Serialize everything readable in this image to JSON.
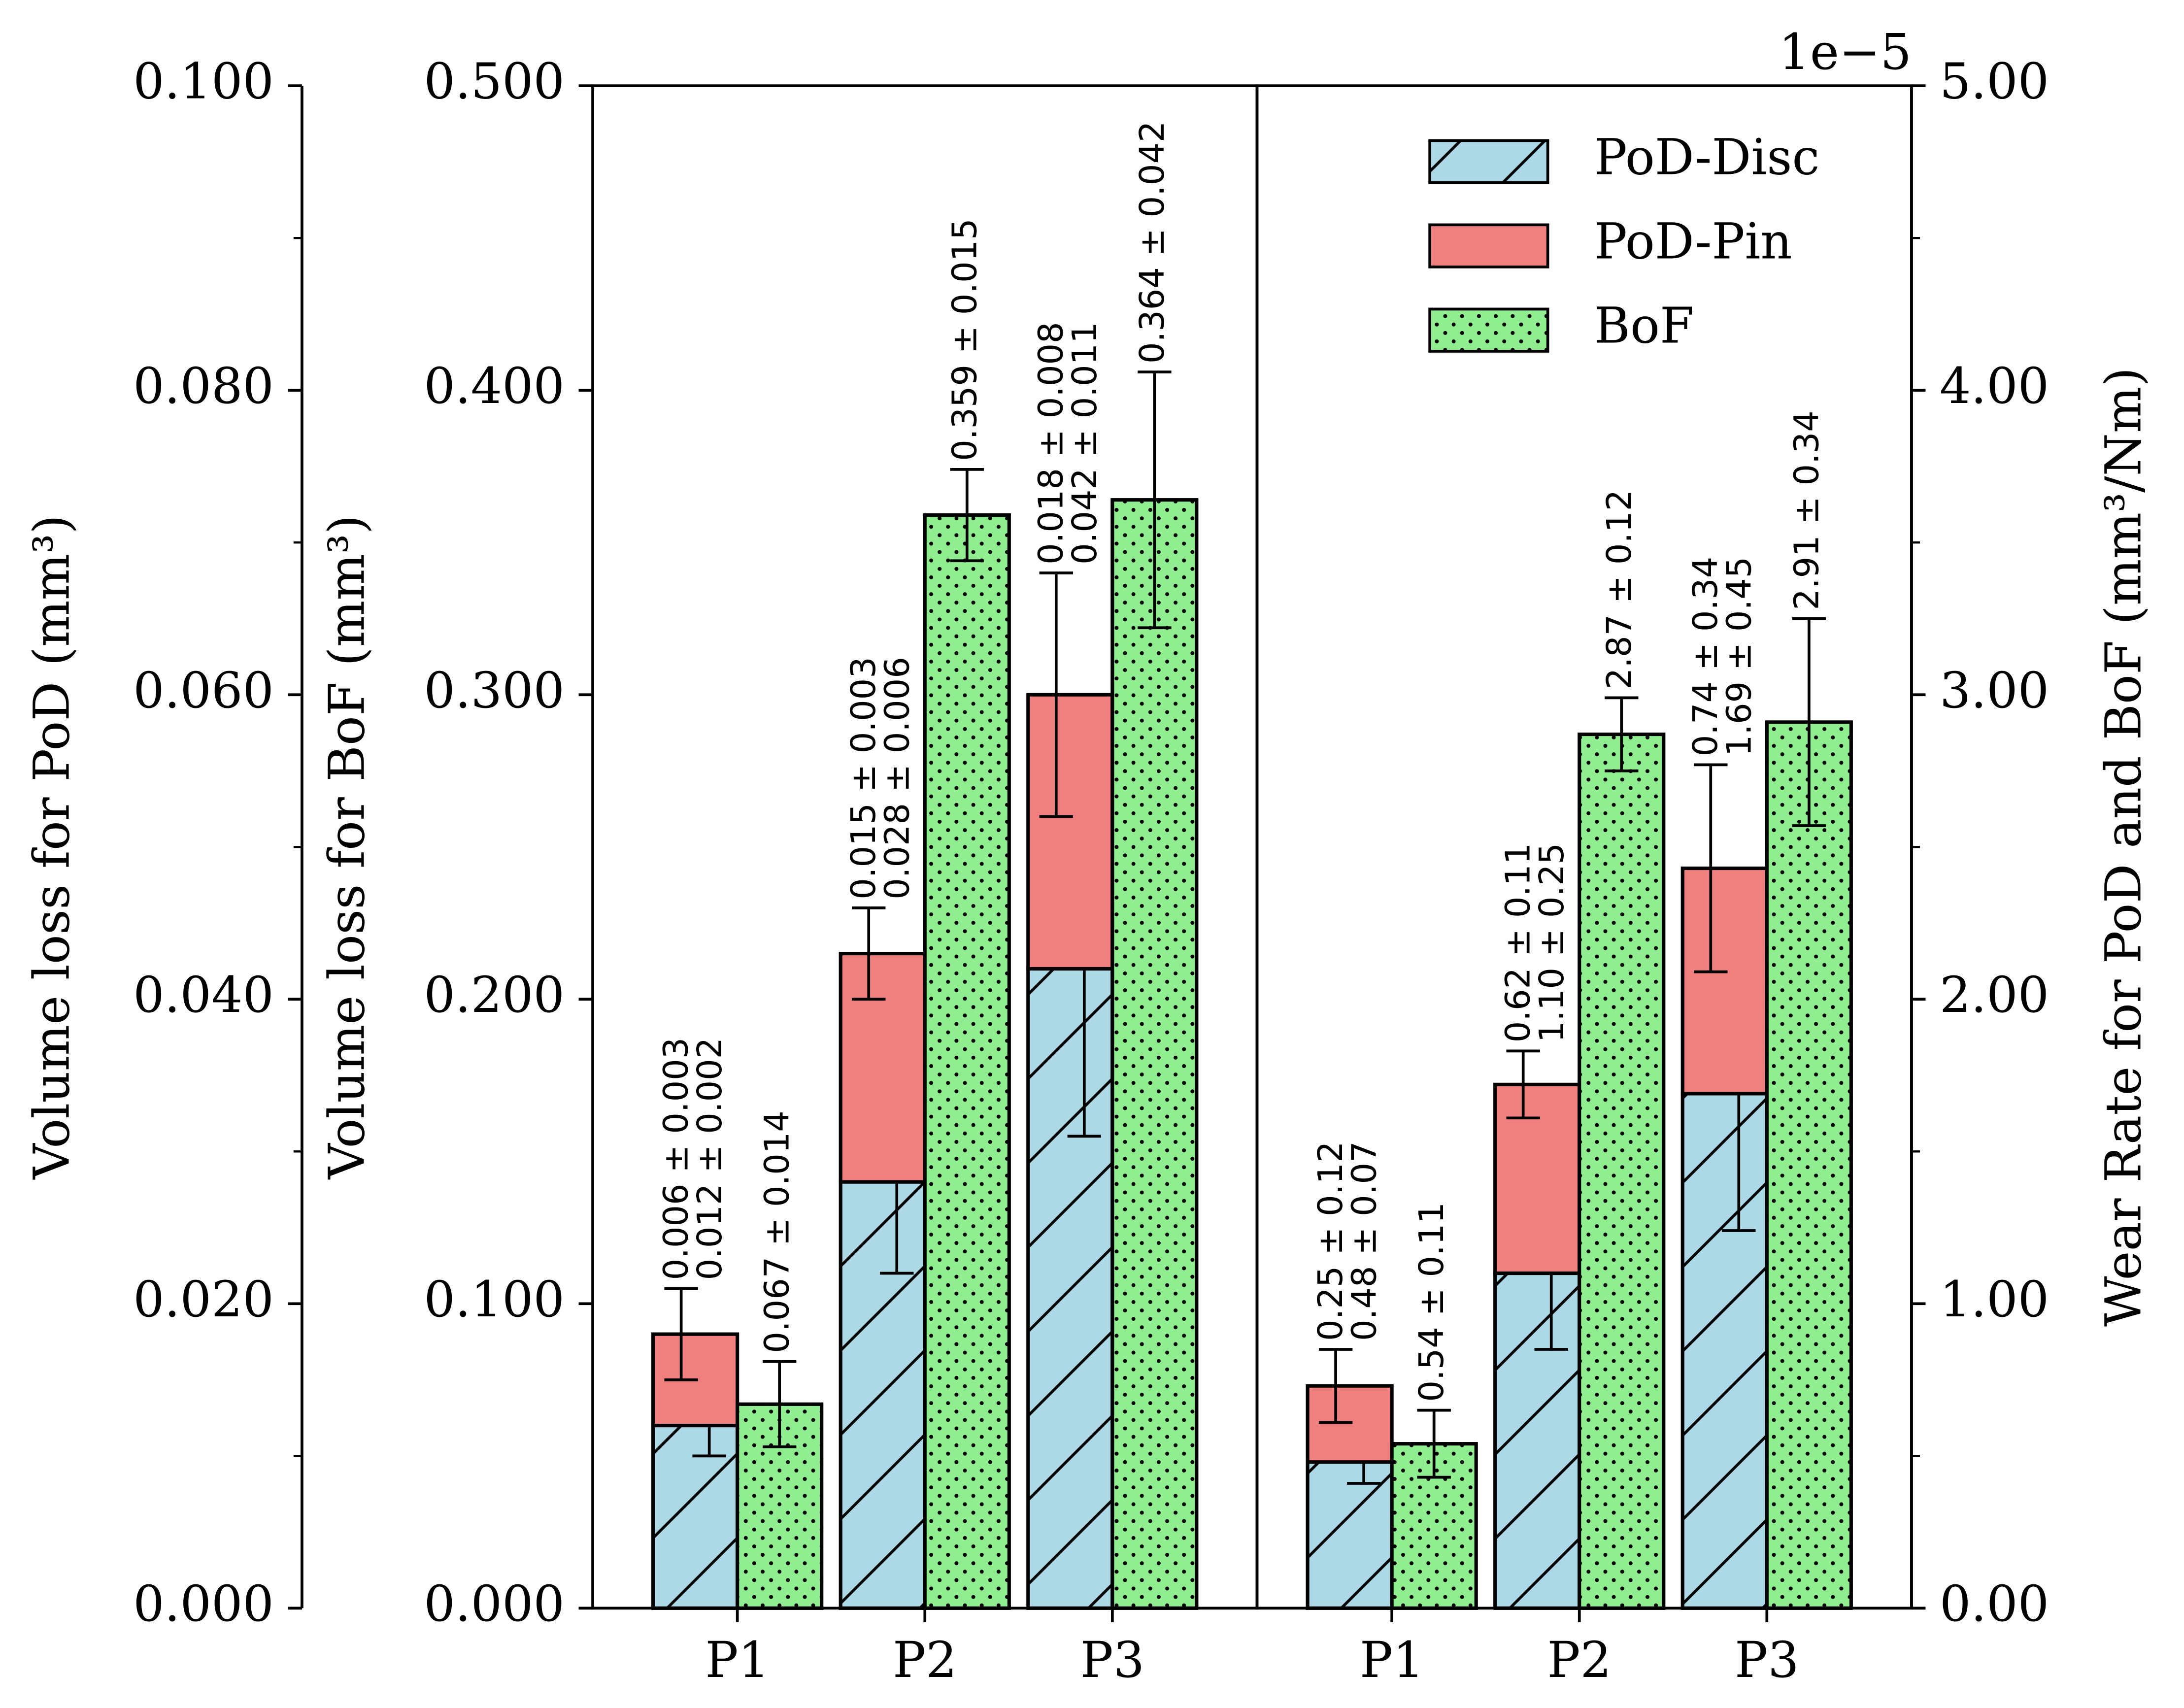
{
  "chart_data": [
    {
      "type": "bar",
      "categories": [
        "P1",
        "P2",
        "P3"
      ],
      "ylabel": "Volume loss for PoD (mm³)",
      "ylim": [
        0,
        0.1
      ],
      "yticks": [
        {
          "value": 0,
          "label": "0.000"
        },
        {
          "value": 0.02,
          "label": "0.020"
        },
        {
          "value": 0.04,
          "label": "0.040"
        },
        {
          "value": 0.06,
          "label": "0.060"
        },
        {
          "value": 0.08,
          "label": "0.080"
        },
        {
          "value": 0.1,
          "label": "0.100"
        }
      ],
      "yminorticks": [
        0.01,
        0.03,
        0.05,
        0.07,
        0.09
      ],
      "y2label": "Volume loss for BoF (mm³)",
      "y2lim": [
        0,
        0.5
      ],
      "y2ticks": [
        {
          "value": 0,
          "label": "0.000"
        },
        {
          "value": 0.1,
          "label": "0.100"
        },
        {
          "value": 0.2,
          "label": "0.200"
        },
        {
          "value": 0.3,
          "label": "0.300"
        },
        {
          "value": 0.4,
          "label": "0.400"
        },
        {
          "value": 0.5,
          "label": "0.500"
        }
      ],
      "stacked": true,
      "series": [
        {
          "color": "#add8e6",
          "hatch": "/",
          "values": [
            0.012,
            0.028,
            0.042
          ],
          "errors": [
            0.002,
            0.006,
            0.011
          ],
          "value_labels": [
            "0.012 ± 0.002",
            "0.028 ± 0.006",
            "0.042 ± 0.011"
          ]
        },
        {
          "color": "#f08080",
          "values": [
            0.006,
            0.015,
            0.018
          ],
          "errors": [
            0.003,
            0.003,
            0.008
          ],
          "value_labels": [
            "0.006 ± 0.003",
            "0.015 ± 0.003",
            "0.018 ± 0.008"
          ]
        },
        {
          "color": "#90ee90",
          "hatch": ".",
          "axis": "y2",
          "values": [
            0.067,
            0.359,
            0.364
          ],
          "errors": [
            0.014,
            0.015,
            0.042
          ],
          "value_labels": [
            "0.067 ± 0.014",
            "0.359 ± 0.015",
            "0.364 ± 0.042"
          ]
        }
      ]
    },
    {
      "type": "bar",
      "categories": [
        "P1",
        "P2",
        "P3"
      ],
      "ylabel": "Wear Rate for PoD and BoF (mm³/Nm)",
      "y_side": "right",
      "offset_text": "1e−5",
      "ylim": [
        0,
        5
      ],
      "yticks": [
        {
          "value": 0,
          "label": "0.00"
        },
        {
          "value": 1,
          "label": "1.00"
        },
        {
          "value": 2,
          "label": "2.00"
        },
        {
          "value": 3,
          "label": "3.00"
        },
        {
          "value": 4,
          "label": "4.00"
        },
        {
          "value": 5,
          "label": "5.00"
        }
      ],
      "yminorticks": [
        0.5,
        1.5,
        2.5,
        3.5,
        4.5
      ],
      "stacked": true,
      "legend": "upper right",
      "series": [
        {
          "name": "PoD-Disc",
          "color": "#add8e6",
          "hatch": "/",
          "values": [
            0.48,
            1.1,
            1.69
          ],
          "errors": [
            0.07,
            0.25,
            0.45
          ],
          "value_labels": [
            "0.48 ± 0.07",
            "1.10 ± 0.25",
            "1.69 ± 0.45"
          ]
        },
        {
          "name": "PoD-Pin",
          "color": "#f08080",
          "values": [
            0.25,
            0.62,
            0.74
          ],
          "errors": [
            0.12,
            0.11,
            0.34
          ],
          "value_labels": [
            "0.25 ± 0.12",
            "0.62 ± 0.11",
            "0.74 ± 0.34"
          ]
        },
        {
          "name": "BoF",
          "color": "#90ee90",
          "hatch": ".",
          "values": [
            0.54,
            2.87,
            2.91
          ],
          "errors": [
            0.11,
            0.12,
            0.34
          ],
          "value_labels": [
            "0.54 ± 0.11",
            "2.87 ± 0.12",
            "2.91 ± 0.34"
          ]
        }
      ]
    }
  ]
}
